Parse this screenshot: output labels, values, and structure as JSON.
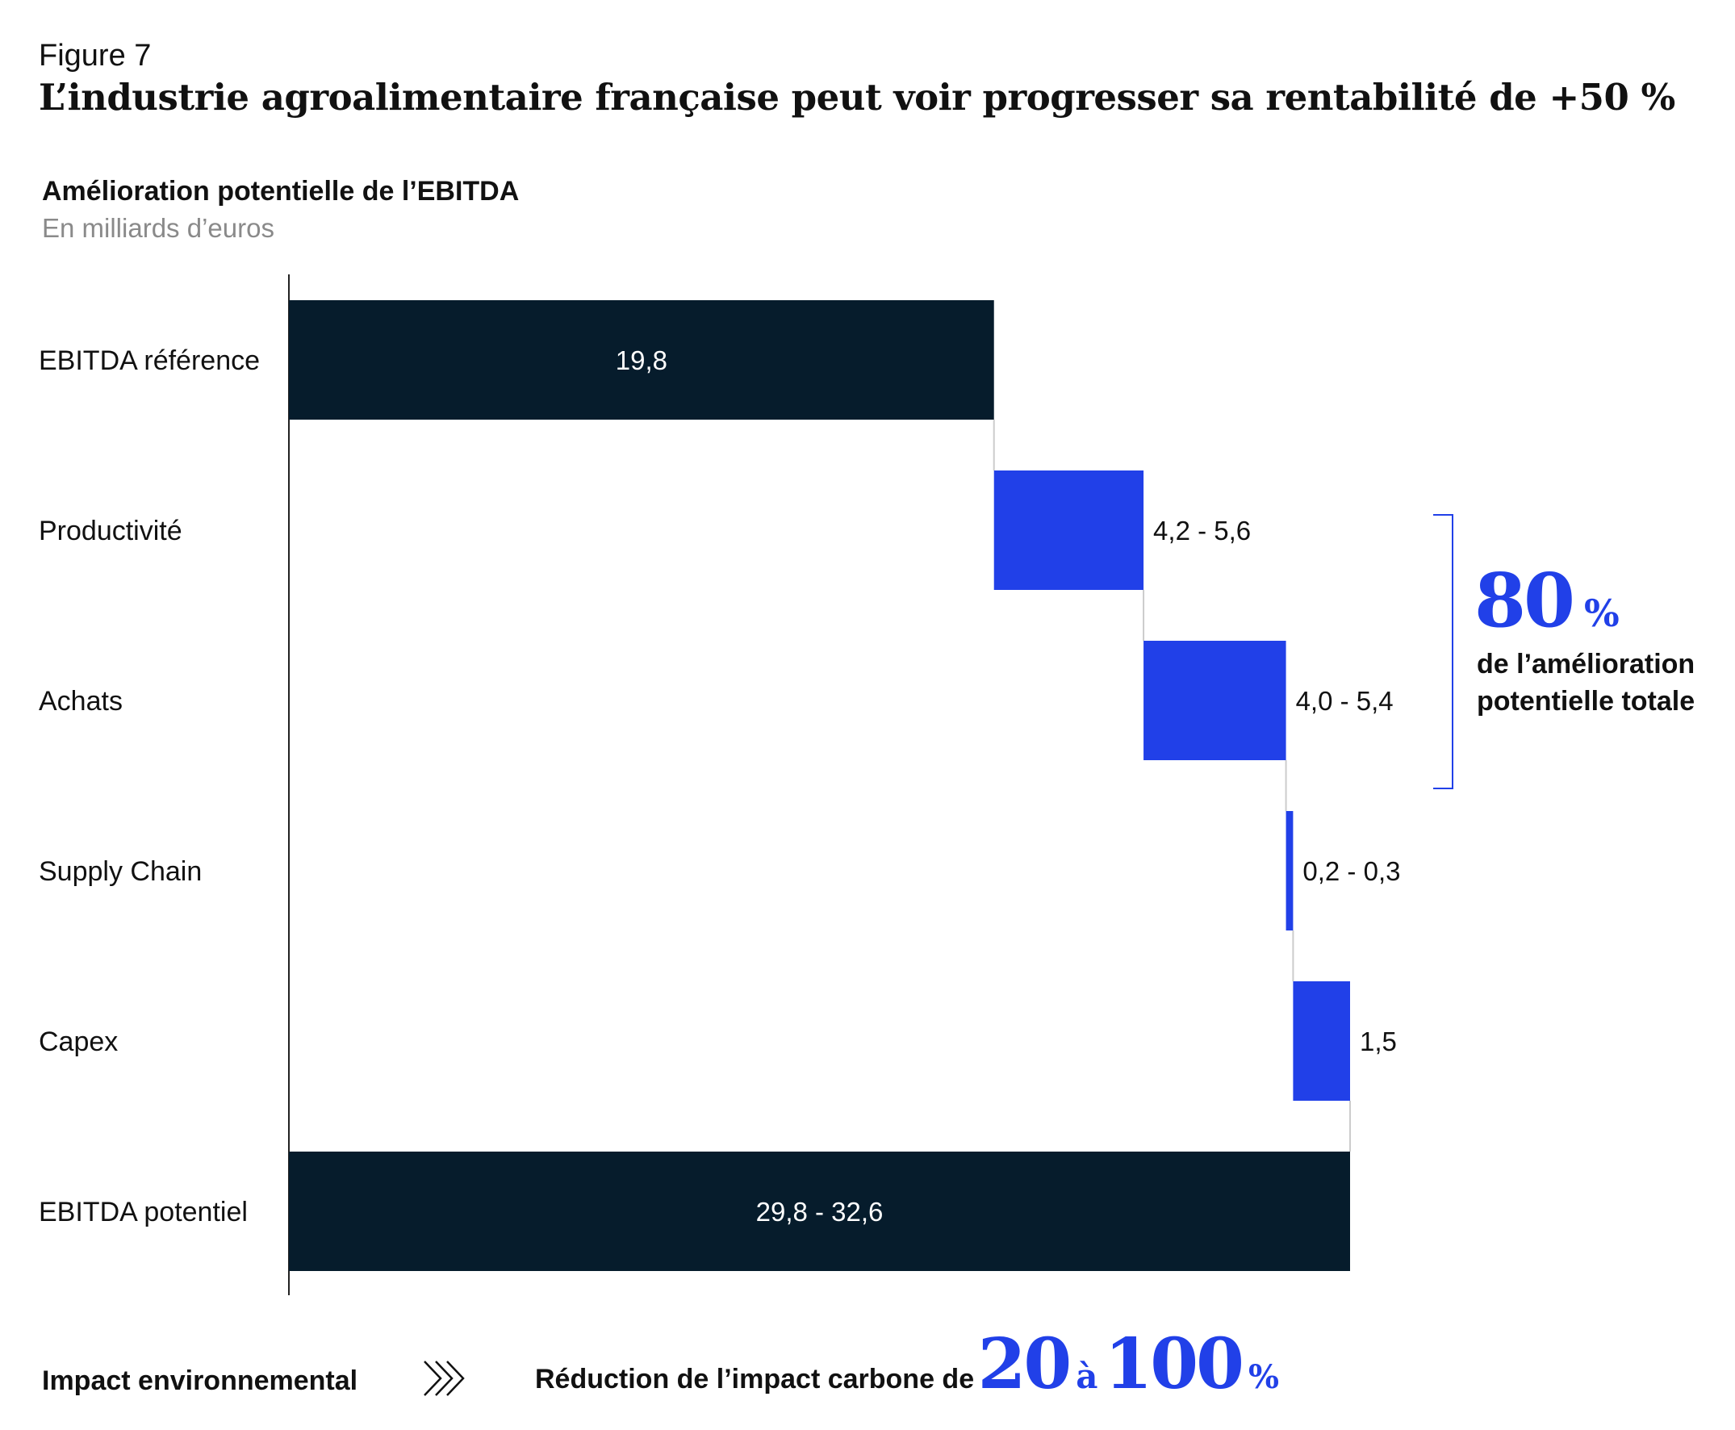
{
  "figure_label": "Figure 7",
  "figure_title": "L’industrie agroalimentaire française peut voir progresser sa rentabilité de +50 %",
  "chart_data": {
    "type": "bar",
    "subtype": "waterfall-horizontal",
    "title": "Amélioration potentielle de l’EBITDA",
    "subtitle": "En milliards d’euros",
    "categories": [
      "EBITDA référence",
      "Productivité",
      "Achats",
      "Supply Chain",
      "Capex",
      "EBITDA potentiel"
    ],
    "bars": [
      {
        "category": "EBITDA référence",
        "label": "19,8",
        "start": 0,
        "end": 19.8,
        "kind": "total"
      },
      {
        "category": "Productivité",
        "label": "4,2 - 5,6",
        "start": 19.8,
        "end": 24.0,
        "kind": "increment"
      },
      {
        "category": "Achats",
        "label": "4,0 - 5,4",
        "start": 24.0,
        "end": 28.0,
        "kind": "increment"
      },
      {
        "category": "Supply Chain",
        "label": "0,2 - 0,3",
        "start": 28.0,
        "end": 28.2,
        "kind": "increment"
      },
      {
        "category": "Capex",
        "label": "1,5",
        "start": 28.2,
        "end": 29.8,
        "kind": "increment"
      },
      {
        "category": "EBITDA potentiel",
        "label": "29,8 - 32,6",
        "start": 0,
        "end": 29.8,
        "kind": "total"
      }
    ],
    "xlim": [
      0,
      34
    ],
    "grid": false,
    "colors": {
      "total": "#061c2c",
      "increment": "#2140e8",
      "connector": "#cccccc",
      "axis": "#222222"
    }
  },
  "annotation": {
    "value": "80",
    "unit": "%",
    "caption_line1": "de l’amélioration",
    "caption_line2": "potentielle totale",
    "spans": [
      "Productivité",
      "Achats"
    ]
  },
  "footer": {
    "left_label": "Impact environnemental",
    "arrow_icon": "triple-chevron-right-icon",
    "text": "Réduction de l’impact carbone de",
    "from": "20",
    "connector": "à",
    "to": "100",
    "unit": "%"
  }
}
